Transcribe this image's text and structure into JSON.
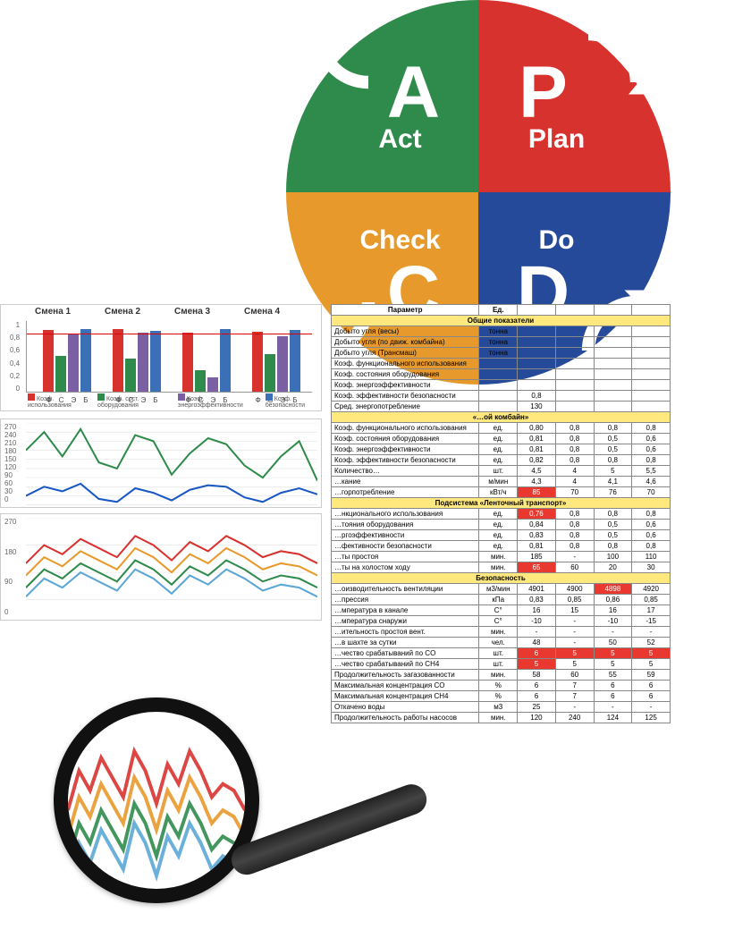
{
  "pdca": {
    "quadrants": [
      {
        "key": "act",
        "letter": "A",
        "word": "Act",
        "color": "#2f8b4b"
      },
      {
        "key": "plan",
        "letter": "P",
        "word": "Plan",
        "color": "#d8322f"
      },
      {
        "key": "check",
        "letter": "C",
        "word": "Check",
        "color": "#e8992b"
      },
      {
        "key": "do",
        "letter": "D",
        "word": "Do",
        "color": "#264a9a"
      }
    ],
    "arrow_color": "#ffffff",
    "gap": 4
  },
  "barchart": {
    "type": "bar",
    "shift_labels": [
      "Смена 1",
      "Смена 2",
      "Смена 3",
      "Смена 4"
    ],
    "bar_labels": [
      "Ф",
      "С",
      "Э",
      "Б"
    ],
    "legend": [
      "Коэф. использования",
      "Коэф. сост. оборудования",
      "Коэф. энергоэффективности",
      "Коэф. безопасности"
    ],
    "groups": [
      [
        0.86,
        0.5,
        0.8,
        0.88
      ],
      [
        0.87,
        0.46,
        0.82,
        0.85
      ],
      [
        0.82,
        0.3,
        0.2,
        0.88
      ],
      [
        0.84,
        0.52,
        0.78,
        0.86
      ]
    ],
    "colors": [
      "#d8322f",
      "#2f8b4b",
      "#7b5fa3",
      "#3b6fb6"
    ],
    "ylim": [
      0,
      1
    ],
    "yticks": [
      0,
      0.2,
      0.4,
      0.6,
      0.8,
      1
    ],
    "redline": 0.8,
    "background": "#ffffff"
  },
  "linechart1": {
    "type": "line",
    "ylim": [
      0,
      270
    ],
    "yticks": [
      0,
      30,
      60,
      90,
      120,
      150,
      180,
      210,
      240,
      270
    ],
    "series": [
      {
        "color": "#2f8b4b",
        "width": 2,
        "points": [
          180,
          240,
          160,
          250,
          140,
          120,
          230,
          210,
          100,
          170,
          220,
          200,
          130,
          90,
          160,
          210,
          80
        ]
      },
      {
        "color": "#1857c4",
        "width": 2,
        "points": [
          30,
          60,
          45,
          70,
          20,
          10,
          55,
          40,
          15,
          50,
          65,
          60,
          25,
          10,
          40,
          55,
          35
        ]
      }
    ],
    "grid_color": "#e0e0e0",
    "background": "#ffffff"
  },
  "linechart2": {
    "type": "line",
    "ylim": [
      0,
      270
    ],
    "yticks": [
      0,
      90,
      180,
      270
    ],
    "series": [
      {
        "color": "#d8322f",
        "width": 2,
        "points": [
          120,
          180,
          150,
          200,
          170,
          140,
          210,
          180,
          130,
          190,
          160,
          210,
          180,
          140,
          160,
          150,
          120
        ]
      },
      {
        "color": "#e8992b",
        "width": 2,
        "points": [
          80,
          140,
          110,
          160,
          130,
          100,
          170,
          140,
          90,
          150,
          120,
          170,
          140,
          100,
          120,
          110,
          80
        ]
      },
      {
        "color": "#2f8b4b",
        "width": 2,
        "points": [
          40,
          100,
          70,
          120,
          90,
          60,
          130,
          100,
          50,
          110,
          80,
          130,
          100,
          60,
          80,
          70,
          40
        ]
      },
      {
        "color": "#5aa7d6",
        "width": 2,
        "points": [
          10,
          70,
          40,
          90,
          60,
          30,
          100,
          70,
          20,
          80,
          50,
          100,
          70,
          30,
          50,
          40,
          10
        ]
      }
    ],
    "grid_color": "#e0e0e0",
    "background": "#ffffff"
  },
  "table": {
    "head_param": "Параметр",
    "head_unit": "Ед.",
    "sections": [
      {
        "title": "Общие показатели",
        "rows": [
          {
            "p": "Добыто угля (весы)",
            "u": "тонна",
            "v": [
              "",
              "",
              "",
              ""
            ]
          },
          {
            "p": "Добыто угля (по движ. комбайна)",
            "u": "тонна",
            "v": [
              "",
              "",
              "",
              ""
            ]
          },
          {
            "p": "Добыто угля (Трансмаш)",
            "u": "тонна",
            "v": [
              "",
              "",
              "",
              ""
            ]
          },
          {
            "p": "Коэф. функционального использования",
            "u": "",
            "v": [
              "",
              "",
              "",
              ""
            ]
          },
          {
            "p": "Коэф. состояния оборудования",
            "u": "",
            "v": [
              "",
              "",
              "",
              ""
            ]
          },
          {
            "p": "Коэф. энергоэффективности",
            "u": "",
            "v": [
              "",
              "",
              "",
              ""
            ]
          },
          {
            "p": "Коэф. эффективности безопасности",
            "u": "",
            "v": [
              "0,8",
              "",
              "",
              ""
            ]
          },
          {
            "p": "Сред. энергопотребление",
            "u": "",
            "v": [
              "130",
              "",
              "",
              ""
            ]
          }
        ]
      },
      {
        "title": "«…ой комбайн»",
        "rows": [
          {
            "p": "Коэф. функционального использования",
            "u": "ед.",
            "v": [
              "0,80",
              "0,8",
              "0,8",
              "0,8"
            ]
          },
          {
            "p": "Коэф. состояния оборудования",
            "u": "ед.",
            "v": [
              "0,81",
              "0,8",
              "0,5",
              "0,6"
            ]
          },
          {
            "p": "Коэф. энергоэффективности",
            "u": "ед.",
            "v": [
              "0,81",
              "0,8",
              "0,5",
              "0,6"
            ]
          },
          {
            "p": "Коэф. эффективности безопасности",
            "u": "ед.",
            "v": [
              "0,82",
              "0,8",
              "0,8",
              "0,8"
            ]
          },
          {
            "p": "Количество…",
            "u": "шт.",
            "v": [
              "4,5",
              "4",
              "5",
              "5,5"
            ]
          },
          {
            "p": "…кание",
            "u": "м/мин",
            "v": [
              "4,3",
              "4",
              "4,1",
              "4,6"
            ]
          },
          {
            "p": "…горпотребление",
            "u": "кВт/ч",
            "v": [
              "85",
              "70",
              "76",
              "70"
            ],
            "flags": [
              true,
              false,
              false,
              false
            ]
          }
        ]
      },
      {
        "title": "Подсистема «Ленточный транспорт»",
        "rows": [
          {
            "p": "…нкционального использования",
            "u": "ед.",
            "v": [
              "0,76",
              "0,8",
              "0,8",
              "0,8"
            ],
            "flags": [
              true,
              false,
              false,
              false
            ]
          },
          {
            "p": "…тояния оборудования",
            "u": "ед.",
            "v": [
              "0,84",
              "0,8",
              "0,5",
              "0,6"
            ]
          },
          {
            "p": "…ргоэффективности",
            "u": "ед.",
            "v": [
              "0,83",
              "0,8",
              "0,5",
              "0,6"
            ]
          },
          {
            "p": "…фективности безопасности",
            "u": "ед.",
            "v": [
              "0,81",
              "0,8",
              "0,8",
              "0,8"
            ]
          },
          {
            "p": "…ты простоя",
            "u": "мин.",
            "v": [
              "185",
              "-",
              "100",
              "110"
            ]
          },
          {
            "p": "…ты на холостом ходу",
            "u": "мин.",
            "v": [
              "65",
              "60",
              "20",
              "30"
            ],
            "flags": [
              true,
              false,
              false,
              false
            ]
          }
        ]
      },
      {
        "title": "Безопасность",
        "rows": [
          {
            "p": "…оизводительность вентиляции",
            "u": "м3/мин",
            "v": [
              "4901",
              "4900",
              "4898",
              "4920"
            ],
            "flags": [
              false,
              false,
              true,
              false
            ]
          },
          {
            "p": "…прессия",
            "u": "кПа",
            "v": [
              "0,83",
              "0,85",
              "0,86",
              "0,85"
            ]
          },
          {
            "p": "…мпература в канале",
            "u": "С°",
            "v": [
              "16",
              "15",
              "16",
              "17"
            ]
          },
          {
            "p": "…мпература снаружи",
            "u": "С°",
            "v": [
              "-10",
              "-",
              "-10",
              "-15"
            ]
          },
          {
            "p": "…ительность простоя вент.",
            "u": "мин.",
            "v": [
              "-",
              "-",
              "-",
              "-"
            ]
          },
          {
            "p": "…в шахте за сутки",
            "u": "чел.",
            "v": [
              "48",
              "-",
              "50",
              "52"
            ]
          },
          {
            "p": "…чество срабатываний по CO",
            "u": "шт.",
            "v": [
              "6",
              "5",
              "5",
              "5"
            ],
            "flags": [
              true,
              true,
              true,
              true
            ]
          },
          {
            "p": "…чество срабатываний по CH4",
            "u": "шт.",
            "v": [
              "5",
              "5",
              "5",
              "5"
            ],
            "flags": [
              true,
              false,
              false,
              false
            ]
          },
          {
            "p": "Продолжительность загазованности",
            "u": "мин.",
            "v": [
              "58",
              "60",
              "55",
              "59"
            ]
          },
          {
            "p": "Максимальная концентрация CO",
            "u": "%",
            "v": [
              "6",
              "7",
              "6",
              "6"
            ]
          },
          {
            "p": "Максимальная концентрация CH4",
            "u": "%",
            "v": [
              "6",
              "7",
              "6",
              "6"
            ]
          },
          {
            "p": "Откачено воды",
            "u": "м3",
            "v": [
              "25",
              "-",
              "-",
              "-"
            ]
          },
          {
            "p": "Продолжительность работы насосов",
            "u": "мин.",
            "v": [
              "120",
              "240",
              "124",
              "125"
            ]
          }
        ]
      }
    ]
  },
  "colors": {
    "section_header": "#ffe97f",
    "border": "#888888",
    "red_cell": "#e8382f"
  }
}
